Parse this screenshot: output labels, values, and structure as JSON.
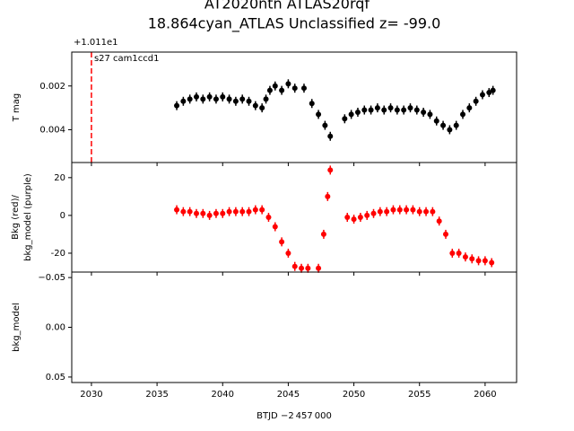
{
  "chart_data": [
    {
      "type": "scatter",
      "title": "AT2020ntn  ATLAS20rqf",
      "subtitle": "18.864cyan_ATLAS Unclassified z= -99.0",
      "ylabel": "T mag",
      "offset_text": "+1.011e1",
      "annotation": "s27 cam1ccd1",
      "vline": 2030,
      "vline_color": "#ff0000",
      "xlim": [
        2028.5,
        2062.4
      ],
      "ylim": [
        0.0055,
        0.00045
      ],
      "yticks": [
        0.002,
        0.004
      ],
      "series": [
        {
          "color": "#000000",
          "x": [
            2036.5,
            2037,
            2037.5,
            2038,
            2038.5,
            2039,
            2039.5,
            2040,
            2040.5,
            2041,
            2041.5,
            2042,
            2042.5,
            2043,
            2043.3,
            2043.6,
            2044,
            2044.5,
            2045,
            2045.5,
            2046.2,
            2046.8,
            2047.3,
            2047.8,
            2048.2,
            2049.3,
            2049.8,
            2050.3,
            2050.8,
            2051.3,
            2051.8,
            2052.3,
            2052.8,
            2053.3,
            2053.8,
            2054.3,
            2054.8,
            2055.3,
            2055.8,
            2056.3,
            2056.8,
            2057.3,
            2057.8,
            2058.3,
            2058.8,
            2059.3,
            2059.8,
            2060.3,
            2060.6
          ],
          "values": [
            0.0029,
            0.0027,
            0.0026,
            0.0025,
            0.0026,
            0.0025,
            0.0026,
            0.0025,
            0.0026,
            0.0027,
            0.0026,
            0.0027,
            0.0029,
            0.003,
            0.0026,
            0.0022,
            0.002,
            0.0022,
            0.0019,
            0.0021,
            0.0021,
            0.0028,
            0.0033,
            0.0038,
            0.0043,
            0.0035,
            0.0033,
            0.0032,
            0.0031,
            0.0031,
            0.003,
            0.0031,
            0.003,
            0.0031,
            0.0031,
            0.003,
            0.0031,
            0.0032,
            0.0033,
            0.0036,
            0.0038,
            0.004,
            0.0038,
            0.0033,
            0.003,
            0.0027,
            0.0024,
            0.0023,
            0.0022
          ]
        }
      ]
    },
    {
      "type": "scatter",
      "ylabel": "Bkg (red)/\nbkg_model (purple)",
      "xlim": [
        2028.5,
        2062.4
      ],
      "ylim": [
        -30,
        28
      ],
      "yticks": [
        -20,
        0,
        20
      ],
      "series": [
        {
          "color": "#ff0000",
          "x": [
            2036.5,
            2037,
            2037.5,
            2038,
            2038.5,
            2039,
            2039.5,
            2040,
            2040.5,
            2041,
            2041.5,
            2042,
            2042.5,
            2043,
            2043.5,
            2044,
            2044.5,
            2045,
            2045.5,
            2046,
            2046.5,
            2047.3,
            2047.7,
            2048,
            2048.2,
            2049.5,
            2050,
            2050.5,
            2051,
            2051.5,
            2052,
            2052.5,
            2053,
            2053.5,
            2054,
            2054.5,
            2055,
            2055.5,
            2056,
            2056.5,
            2057,
            2057.5,
            2058,
            2058.5,
            2059,
            2059.5,
            2060,
            2060.5
          ],
          "values": [
            3,
            2,
            2,
            1,
            1,
            0,
            1,
            1,
            2,
            2,
            2,
            2,
            3,
            3,
            -1,
            -6,
            -14,
            -20,
            -27,
            -28,
            -28,
            -28,
            -10,
            10,
            24,
            -1,
            -2,
            -1,
            0,
            1,
            2,
            2,
            3,
            3,
            3,
            3,
            2,
            2,
            2,
            -3,
            -10,
            -20,
            -20,
            -22,
            -23,
            -24,
            -24,
            -25
          ]
        }
      ]
    },
    {
      "type": "scatter",
      "ylabel": "bkg_model",
      "xlabel": "BTJD −2 457 000",
      "xlim": [
        2028.5,
        2062.4
      ],
      "xticks": [
        2030,
        2035,
        2040,
        2045,
        2050,
        2055,
        2060
      ],
      "ylim": [
        0.0555,
        -0.0555
      ],
      "yticks": [
        {
          "value": -0.05,
          "label": "−0.05"
        },
        {
          "value": 0,
          "label": "0.00"
        },
        {
          "value": 0.05,
          "label": "0.05"
        }
      ]
    }
  ]
}
